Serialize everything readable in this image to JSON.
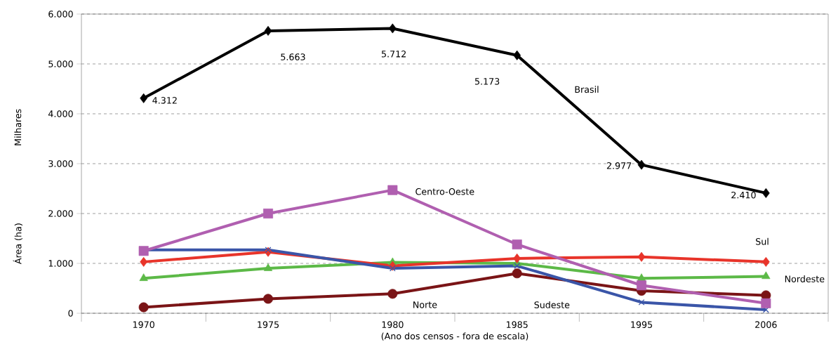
{
  "chart_data": {
    "type": "line",
    "xlabel": "(Ano dos censos - fora de escala)",
    "ylabel": "Área (ha)",
    "annotations": [
      "Milhares"
    ],
    "categories": [
      "1970",
      "1975",
      "1980",
      "1985",
      "1995",
      "2006"
    ],
    "series": [
      {
        "name": "Brasil",
        "color": "#000000",
        "marker": "diamond",
        "values": [
          4312,
          5663,
          5712,
          5173,
          2977,
          2410
        ],
        "value_labels": [
          "4.312",
          "5.663",
          "5.712",
          "5.173",
          "2.977",
          "2.410"
        ]
      },
      {
        "name": "Centro-Oeste",
        "color": "#b05fb0",
        "marker": "square",
        "values": [
          1250,
          2000,
          2470,
          1380,
          560,
          200
        ]
      },
      {
        "name": "Sudeste",
        "color": "#3a55a8",
        "marker": "cross",
        "values": [
          1270,
          1270,
          900,
          950,
          220,
          70
        ]
      },
      {
        "name": "Sul",
        "color": "#e8342a",
        "marker": "diamond",
        "values": [
          1030,
          1230,
          950,
          1100,
          1130,
          1030
        ]
      },
      {
        "name": "Nordeste",
        "color": "#5cb947",
        "marker": "triangle",
        "values": [
          700,
          900,
          1020,
          1000,
          700,
          740
        ]
      },
      {
        "name": "Norte",
        "color": "#7a1416",
        "marker": "circle",
        "values": [
          120,
          290,
          390,
          800,
          450,
          360
        ]
      }
    ],
    "ylim": [
      0,
      6000
    ],
    "yticks": [
      0,
      {
        "value": 1000,
        "label": "1.000"
      },
      {
        "value": 2000,
        "label": "2.000"
      },
      {
        "value": 3000,
        "label": "3.000"
      },
      {
        "value": 4000,
        "label": "4.000"
      },
      {
        "value": 5000,
        "label": "5.000"
      },
      {
        "value": 6000,
        "label": "6.000"
      }
    ],
    "grid": "y",
    "legend": false,
    "line_style": "solid"
  }
}
